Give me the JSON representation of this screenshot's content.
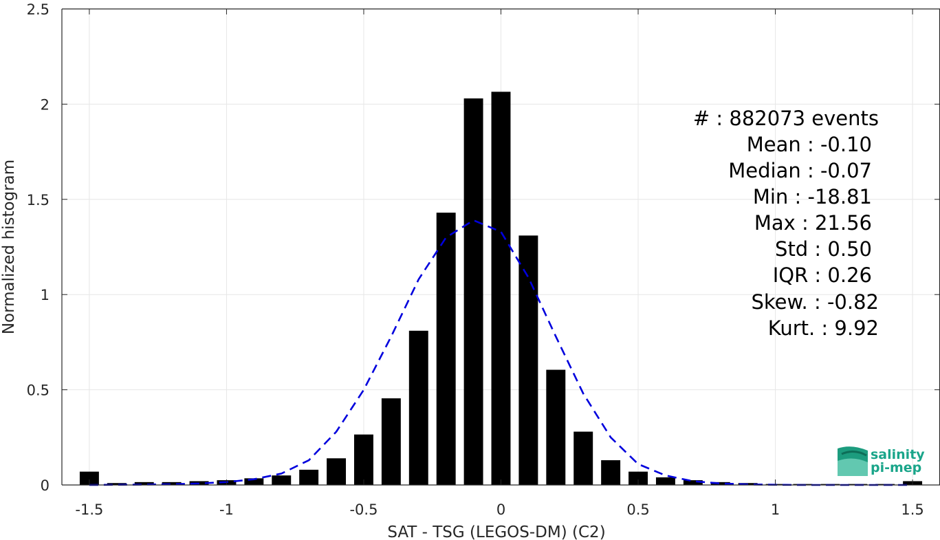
{
  "chart_data": {
    "type": "bar",
    "xlabel": "SAT - TSG (LEGOS-DM) (C2)",
    "ylabel": "Normalized histogram",
    "xlim": [
      -1.6,
      1.6
    ],
    "ylim": [
      0,
      2.5
    ],
    "xticks": [
      "-1.5",
      "-1",
      "-0.5",
      "0",
      "0.5",
      "1",
      "1.5"
    ],
    "yticks": [
      "0",
      "0.5",
      "1",
      "1.5",
      "2",
      "2.5"
    ],
    "grid": true,
    "bar_width": 0.07,
    "x": [
      -1.5,
      -1.4,
      -1.3,
      -1.2,
      -1.1,
      -1.0,
      -0.9,
      -0.8,
      -0.7,
      -0.6,
      -0.5,
      -0.4,
      -0.3,
      -0.2,
      -0.1,
      0.0,
      0.1,
      0.2,
      0.3,
      0.4,
      0.5,
      0.6,
      0.7,
      0.8,
      0.9,
      1.0,
      1.1,
      1.2,
      1.3,
      1.4,
      1.5
    ],
    "values": [
      0.07,
      0.01,
      0.015,
      0.015,
      0.02,
      0.025,
      0.035,
      0.05,
      0.08,
      0.14,
      0.265,
      0.455,
      0.81,
      1.43,
      2.03,
      2.065,
      1.31,
      0.605,
      0.28,
      0.13,
      0.07,
      0.04,
      0.025,
      0.015,
      0.01,
      0.005,
      0.005,
      0.005,
      0.005,
      0.005,
      0.02
    ],
    "fit_curve": {
      "style": "dashed",
      "color": "#0000dd",
      "x": [
        -1.5,
        -1.4,
        -1.3,
        -1.2,
        -1.1,
        -1.0,
        -0.9,
        -0.8,
        -0.7,
        -0.6,
        -0.5,
        -0.4,
        -0.3,
        -0.2,
        -0.1,
        0.0,
        0.1,
        0.2,
        0.3,
        0.4,
        0.5,
        0.6,
        0.7,
        0.8,
        0.9,
        1.0,
        1.1,
        1.2,
        1.3,
        1.4,
        1.5
      ],
      "y": [
        0.0,
        0.001,
        0.002,
        0.004,
        0.008,
        0.015,
        0.03,
        0.06,
        0.13,
        0.28,
        0.5,
        0.78,
        1.08,
        1.3,
        1.39,
        1.33,
        1.09,
        0.78,
        0.48,
        0.25,
        0.11,
        0.05,
        0.02,
        0.008,
        0.003,
        0.001,
        0.0,
        0.0,
        0.0,
        0.0,
        0.0
      ]
    },
    "stats": [
      "#  : 882073 events",
      "Mean : -0.10",
      "Median : -0.07",
      "Min : -18.81",
      "Max : 21.56",
      "Std : 0.50",
      "IQR : 0.26",
      "Skew. : -0.82",
      "Kurt. : 9.92"
    ],
    "colors": {
      "bars": "#000000",
      "grid": "#e6e6e6",
      "axis": "#262626"
    }
  },
  "logo": {
    "line1": "salinity",
    "line2": "pi-mep"
  }
}
